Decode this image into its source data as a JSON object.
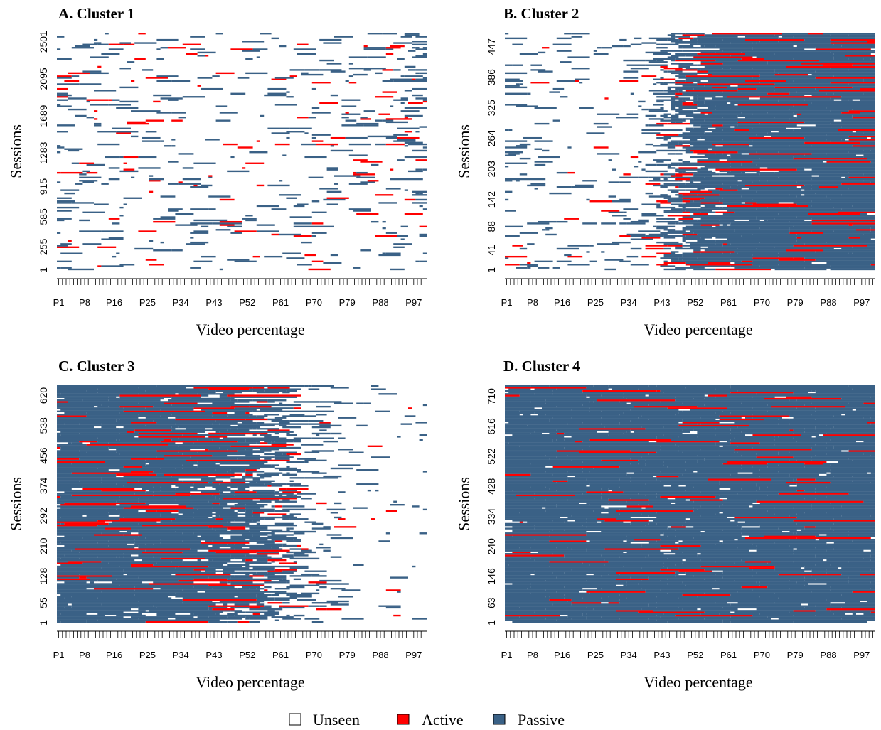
{
  "figure": {
    "legend": [
      {
        "key": "unseen",
        "label": "Unseen",
        "color": "#ffffff"
      },
      {
        "key": "active",
        "label": "Active",
        "color": "#ff0000"
      },
      {
        "key": "passive",
        "label": "Passive",
        "color": "#3a6186"
      }
    ]
  },
  "chart_data": [
    {
      "type": "heatmap",
      "title": "A. Cluster 1",
      "xlabel": "Video percentage",
      "ylabel": "Sessions",
      "x_tick_labels": [
        "P1",
        "P8",
        "P16",
        "P25",
        "P34",
        "P43",
        "P52",
        "P61",
        "P70",
        "P79",
        "P88",
        "P97"
      ],
      "y_tick_labels": [
        "1",
        "255",
        "585",
        "915",
        "1283",
        "1689",
        "2095",
        "2501"
      ],
      "x_range": [
        "P1",
        "P100"
      ],
      "y_range": [
        1,
        2600
      ],
      "categories": [
        "Unseen",
        "Active",
        "Passive"
      ],
      "pattern": "sparse",
      "density_profile": [
        0.2,
        0.16,
        0.12,
        0.1,
        0.09,
        0.1,
        0.12,
        0.16,
        0.22,
        0.3
      ],
      "active_ratio": 0.22,
      "seed": 11
    },
    {
      "type": "heatmap",
      "title": "B. Cluster 2",
      "xlabel": "Video percentage",
      "ylabel": "Sessions",
      "x_tick_labels": [
        "P1",
        "P8",
        "P16",
        "P25",
        "P34",
        "P43",
        "P52",
        "P61",
        "P70",
        "P79",
        "P88",
        "P97"
      ],
      "y_tick_labels": [
        "1",
        "41",
        "88",
        "142",
        "203",
        "264",
        "325",
        "386",
        "447"
      ],
      "x_range": [
        "P1",
        "P100"
      ],
      "y_range": [
        1,
        475
      ],
      "categories": [
        "Unseen",
        "Active",
        "Passive"
      ],
      "pattern": "late",
      "density_profile": [
        0.18,
        0.12,
        0.08,
        0.15,
        0.45,
        0.78,
        0.93,
        0.96,
        0.92,
        0.88
      ],
      "active_ratio": 0.13,
      "seed": 23
    },
    {
      "type": "heatmap",
      "title": "C. Cluster 3",
      "xlabel": "Video percentage",
      "ylabel": "Sessions",
      "x_tick_labels": [
        "P1",
        "P8",
        "P16",
        "P25",
        "P34",
        "P43",
        "P52",
        "P61",
        "P70",
        "P79",
        "P88",
        "P97"
      ],
      "y_tick_labels": [
        "1",
        "55",
        "128",
        "210",
        "292",
        "374",
        "456",
        "538",
        "620"
      ],
      "x_range": [
        "P1",
        "P100"
      ],
      "y_range": [
        1,
        648
      ],
      "categories": [
        "Unseen",
        "Active",
        "Passive"
      ],
      "pattern": "early",
      "density_profile": [
        0.95,
        0.93,
        0.88,
        0.8,
        0.66,
        0.45,
        0.22,
        0.1,
        0.07,
        0.06
      ],
      "active_ratio": 0.13,
      "seed": 37
    },
    {
      "type": "heatmap",
      "title": "D. Cluster 4",
      "xlabel": "Video percentage",
      "ylabel": "Sessions",
      "x_tick_labels": [
        "P1",
        "P8",
        "P16",
        "P25",
        "P34",
        "P43",
        "P52",
        "P61",
        "P70",
        "P79",
        "P88",
        "P97"
      ],
      "y_tick_labels": [
        "1",
        "63",
        "146",
        "240",
        "334",
        "428",
        "522",
        "616",
        "710"
      ],
      "x_range": [
        "P1",
        "P100"
      ],
      "y_range": [
        1,
        745
      ],
      "categories": [
        "Unseen",
        "Active",
        "Passive"
      ],
      "pattern": "full",
      "density_profile": [
        0.96,
        0.95,
        0.95,
        0.95,
        0.95,
        0.95,
        0.95,
        0.95,
        0.94,
        0.92
      ],
      "active_ratio": 0.07,
      "seed": 51
    }
  ]
}
